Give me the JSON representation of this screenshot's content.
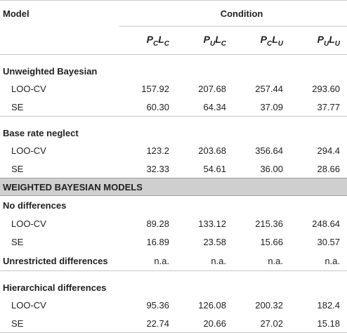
{
  "header": {
    "model_label": "Model",
    "condition_label": "Condition",
    "columns": [
      {
        "main": "P",
        "sub1": "C",
        "mid": "L",
        "sub2": "C"
      },
      {
        "main": "P",
        "sub1": "U",
        "mid": "L",
        "sub2": "C"
      },
      {
        "main": "P",
        "sub1": "C",
        "mid": "L",
        "sub2": "U"
      },
      {
        "main": "P",
        "sub1": "U",
        "mid": "L",
        "sub2": "U"
      }
    ]
  },
  "groups": {
    "unweighted": {
      "title": "Unweighted Bayesian",
      "loo": {
        "label": "LOO-CV",
        "values": [
          "157.92",
          "207.68",
          "257.44",
          "293.60"
        ]
      },
      "se": {
        "label": "SE",
        "values": [
          "60.30",
          "64.34",
          "37.09",
          "37.77"
        ]
      }
    },
    "base_rate": {
      "title": "Base rate neglect",
      "loo": {
        "label": "LOO-CV",
        "values": [
          "123.2",
          "203.68",
          "356.64",
          "294.4"
        ]
      },
      "se": {
        "label": "SE",
        "values": [
          "32.33",
          "54.61",
          "36.00",
          "28.66"
        ]
      }
    },
    "weighted_band": "WEIGHTED BAYESIAN MODELS",
    "no_diff": {
      "title": "No differences",
      "loo": {
        "label": "LOO-CV",
        "values": [
          "89.28",
          "133.12",
          "215.36",
          "248.64"
        ]
      },
      "se": {
        "label": "SE",
        "values": [
          "16.89",
          "23.58",
          "15.66",
          "30.57"
        ]
      }
    },
    "unrestricted": {
      "title": "Unrestricted differences",
      "values": [
        "n.a.",
        "n.a.",
        "n.a.",
        "n.a."
      ]
    },
    "hierarchical": {
      "title": "Hierarchical differences",
      "loo": {
        "label": "LOO-CV",
        "values": [
          "95.36",
          "126.08",
          "200.32",
          "182.4"
        ]
      },
      "se": {
        "label": "SE",
        "values": [
          "22.74",
          "20.66",
          "27.02",
          "15.18"
        ]
      }
    }
  }
}
